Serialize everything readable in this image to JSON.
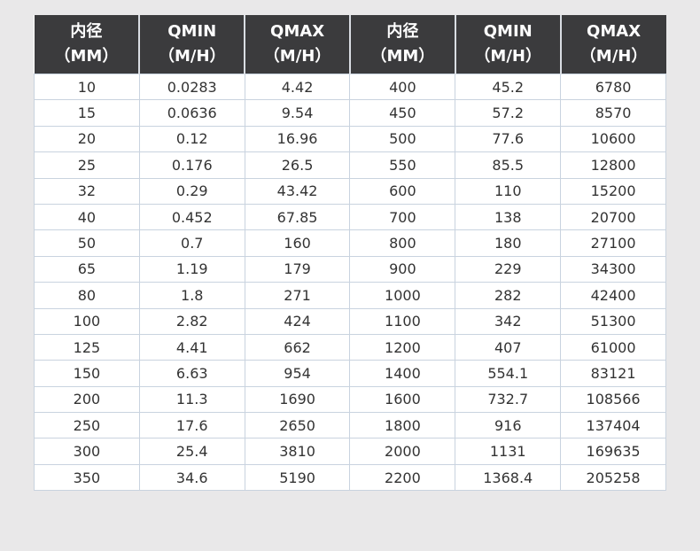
{
  "table": {
    "headers": [
      {
        "line1": "内径",
        "line2": "（MM）"
      },
      {
        "line1": "QMIN",
        "line2": "（M/H）"
      },
      {
        "line1": "QMAX",
        "line2": "（M/H）"
      },
      {
        "line1": "内径",
        "line2": "（MM）"
      },
      {
        "line1": "QMIN",
        "line2": "（M/H）"
      },
      {
        "line1": "QMAX",
        "line2": "（M/H）"
      }
    ],
    "rows": [
      [
        "10",
        "0.0283",
        "4.42",
        "400",
        "45.2",
        "6780"
      ],
      [
        "15",
        "0.0636",
        "9.54",
        "450",
        "57.2",
        "8570"
      ],
      [
        "20",
        "0.12",
        "16.96",
        "500",
        "77.6",
        "10600"
      ],
      [
        "25",
        "0.176",
        "26.5",
        "550",
        "85.5",
        "12800"
      ],
      [
        "32",
        "0.29",
        "43.42",
        "600",
        "110",
        "15200"
      ],
      [
        "40",
        "0.452",
        "67.85",
        "700",
        "138",
        "20700"
      ],
      [
        "50",
        "0.7",
        "160",
        "800",
        "180",
        "27100"
      ],
      [
        "65",
        "1.19",
        "179",
        "900",
        "229",
        "34300"
      ],
      [
        "80",
        "1.8",
        "271",
        "1000",
        "282",
        "42400"
      ],
      [
        "100",
        "2.82",
        "424",
        "1100",
        "342",
        "51300"
      ],
      [
        "125",
        "4.41",
        "662",
        "1200",
        "407",
        "61000"
      ],
      [
        "150",
        "6.63",
        "954",
        "1400",
        "554.1",
        "83121"
      ],
      [
        "200",
        "11.3",
        "1690",
        "1600",
        "732.7",
        "108566"
      ],
      [
        "250",
        "17.6",
        "2650",
        "1800",
        "916",
        "137404"
      ],
      [
        "300",
        "25.4",
        "3810",
        "2000",
        "1131",
        "169635"
      ],
      [
        "350",
        "34.6",
        "5190",
        "2200",
        "1368.4",
        "205258"
      ]
    ]
  }
}
